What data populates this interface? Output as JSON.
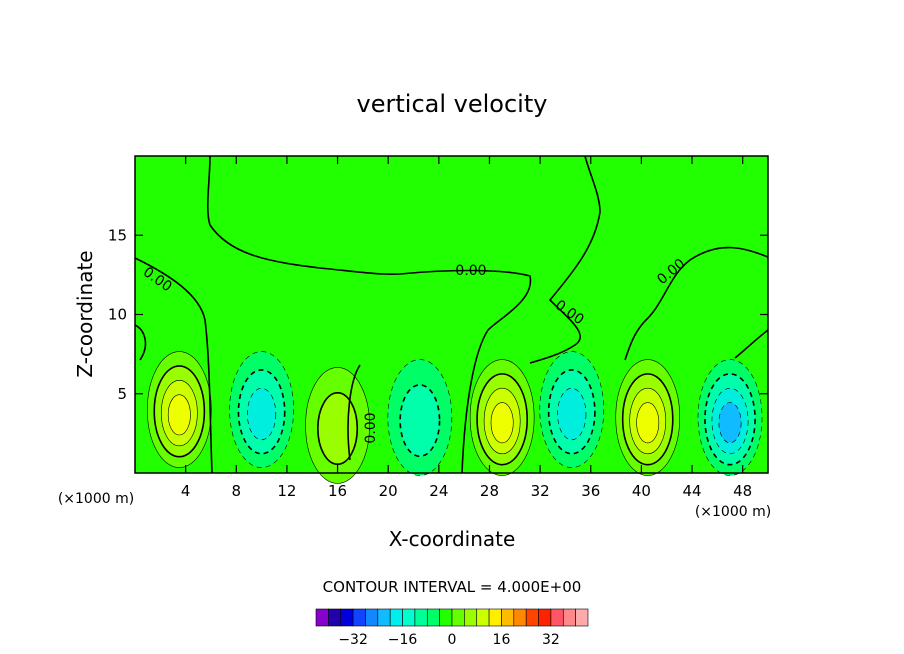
{
  "chart_data": {
    "type": "contour",
    "title": "vertical velocity",
    "xlabel": "X-coordinate",
    "ylabel": "Z-coordinate",
    "x_unit": "(×1000 m)",
    "z_unit": "(×1000 m)",
    "xlim": [
      0,
      50
    ],
    "ylim": [
      0,
      20
    ],
    "x_ticks": [
      4,
      8,
      12,
      16,
      20,
      24,
      28,
      32,
      36,
      40,
      44,
      48
    ],
    "y_ticks": [
      5,
      10,
      15
    ],
    "contour_interval_label": "CONTOUR INTERVAL = 4.000E+00",
    "contour_interval": 4,
    "contour_labels": [
      "0.00",
      "0.00",
      "0.00",
      "0.00",
      "0.00",
      "0.00"
    ],
    "colorbar": {
      "tick_labels": [
        "−32",
        "−16",
        "0",
        "16",
        "32"
      ],
      "tick_values": [
        -32,
        -16,
        0,
        16,
        32
      ],
      "colors": [
        "#8800cc",
        "#2200aa",
        "#0000dd",
        "#1144ff",
        "#1188ff",
        "#11bbff",
        "#00eeee",
        "#00ffcc",
        "#00ff99",
        "#00ff66",
        "#22ff00",
        "#66ff00",
        "#99ff00",
        "#ccff00",
        "#ffee00",
        "#ffbb00",
        "#ff8800",
        "#ff4400",
        "#ff2200",
        "#ff5566",
        "#ff8888",
        "#ffaaaa"
      ]
    },
    "cells": [
      {
        "x": 3.5,
        "z": 4,
        "value": 14,
        "sign": "positive"
      },
      {
        "x": 10,
        "z": 4,
        "value": -10,
        "sign": "negative"
      },
      {
        "x": 16,
        "z": 3,
        "value": 6,
        "sign": "positive"
      },
      {
        "x": 22.5,
        "z": 3.5,
        "value": -8,
        "sign": "negative"
      },
      {
        "x": 29,
        "z": 3.5,
        "value": 14,
        "sign": "positive"
      },
      {
        "x": 34.5,
        "z": 4,
        "value": -10,
        "sign": "negative"
      },
      {
        "x": 40.5,
        "z": 3.5,
        "value": 14,
        "sign": "positive"
      },
      {
        "x": 47,
        "z": 3.5,
        "value": -14,
        "sign": "negative"
      }
    ]
  }
}
